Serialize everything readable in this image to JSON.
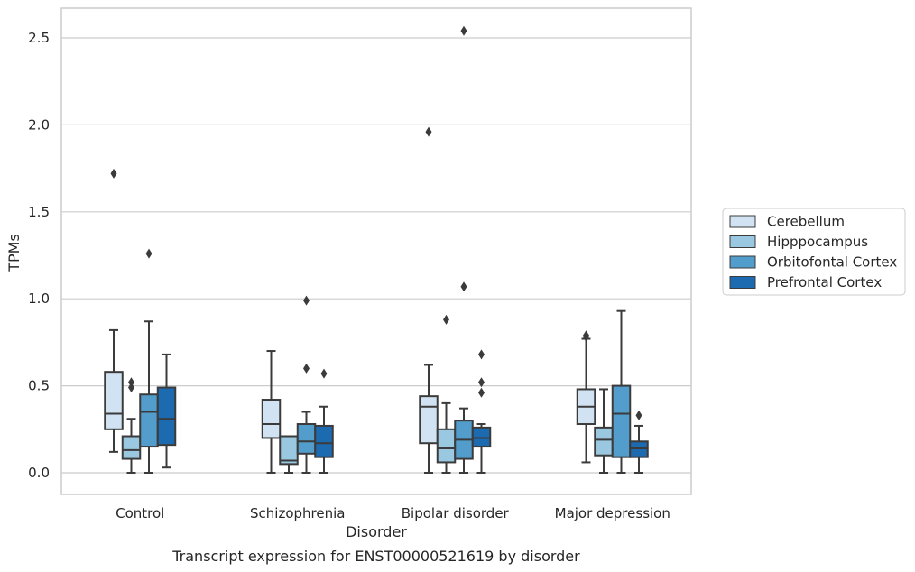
{
  "chart_data": {
    "type": "box",
    "caption": "Transcript expression for ENST00000521619 by disorder",
    "xlabel": "Disorder",
    "ylabel": "TPMs",
    "ylim": [
      -0.12,
      2.67
    ],
    "yticks": [
      "0.0",
      "0.5",
      "1.0",
      "1.5",
      "2.0",
      "2.5"
    ],
    "ytick_values": [
      0.0,
      0.5,
      1.0,
      1.5,
      2.0,
      2.5
    ],
    "grid": "horizontal",
    "legend_position": "right",
    "categories": [
      "Control",
      "Schizophrenia",
      "Bipolar disorder",
      "Major depression"
    ],
    "series": [
      {
        "name": "Cerebellum",
        "color": "#d1e2f2",
        "boxes": [
          {
            "whislo": 0.12,
            "q1": 0.25,
            "med": 0.34,
            "q3": 0.58,
            "whishi": 0.82,
            "fliers": [
              1.72
            ]
          },
          {
            "whislo": 0.0,
            "q1": 0.2,
            "med": 0.28,
            "q3": 0.42,
            "whishi": 0.7,
            "fliers": []
          },
          {
            "whislo": 0.0,
            "q1": 0.17,
            "med": 0.38,
            "q3": 0.44,
            "whishi": 0.62,
            "fliers": [
              1.96
            ]
          },
          {
            "whislo": 0.06,
            "q1": 0.28,
            "med": 0.38,
            "q3": 0.48,
            "whishi": 0.77,
            "fliers": [
              0.79,
              0.78
            ]
          }
        ]
      },
      {
        "name": "Hipppocampus",
        "color": "#9ac8e0",
        "boxes": [
          {
            "whislo": 0.0,
            "q1": 0.08,
            "med": 0.13,
            "q3": 0.21,
            "whishi": 0.31,
            "fliers": [
              0.52,
              0.49
            ]
          },
          {
            "whislo": 0.0,
            "q1": 0.05,
            "med": 0.07,
            "q3": 0.21,
            "whishi": 0.21,
            "fliers": []
          },
          {
            "whislo": 0.0,
            "q1": 0.06,
            "med": 0.14,
            "q3": 0.25,
            "whishi": 0.4,
            "fliers": [
              0.88
            ]
          },
          {
            "whislo": 0.0,
            "q1": 0.1,
            "med": 0.19,
            "q3": 0.26,
            "whishi": 0.48,
            "fliers": []
          }
        ]
      },
      {
        "name": "Orbitofontal Cortex",
        "color": "#529dcc",
        "boxes": [
          {
            "whislo": 0.0,
            "q1": 0.15,
            "med": 0.35,
            "q3": 0.45,
            "whishi": 0.87,
            "fliers": [
              1.26
            ]
          },
          {
            "whislo": 0.0,
            "q1": 0.11,
            "med": 0.18,
            "q3": 0.28,
            "whishi": 0.35,
            "fliers": [
              0.99,
              0.6
            ]
          },
          {
            "whislo": 0.0,
            "q1": 0.08,
            "med": 0.19,
            "q3": 0.3,
            "whishi": 0.37,
            "fliers": [
              2.54,
              1.07
            ]
          },
          {
            "whislo": 0.0,
            "q1": 0.09,
            "med": 0.34,
            "q3": 0.5,
            "whishi": 0.93,
            "fliers": []
          }
        ]
      },
      {
        "name": "Prefrontal Cortex",
        "color": "#1c6aaf",
        "boxes": [
          {
            "whislo": 0.03,
            "q1": 0.16,
            "med": 0.31,
            "q3": 0.49,
            "whishi": 0.68,
            "fliers": []
          },
          {
            "whislo": 0.0,
            "q1": 0.09,
            "med": 0.17,
            "q3": 0.27,
            "whishi": 0.38,
            "fliers": [
              0.57
            ]
          },
          {
            "whislo": 0.0,
            "q1": 0.15,
            "med": 0.2,
            "q3": 0.26,
            "whishi": 0.28,
            "fliers": [
              0.68,
              0.52,
              0.46
            ]
          },
          {
            "whislo": 0.0,
            "q1": 0.09,
            "med": 0.14,
            "q3": 0.18,
            "whishi": 0.27,
            "fliers": [
              0.33
            ]
          }
        ]
      }
    ]
  }
}
